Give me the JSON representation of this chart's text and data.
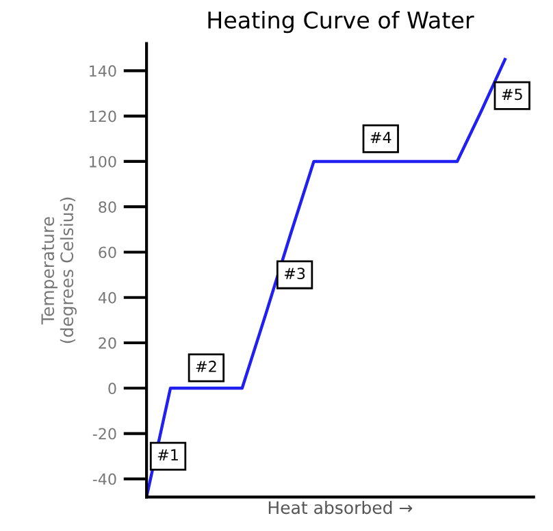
{
  "chart_data": {
    "type": "line",
    "title": "Heating Curve of Water",
    "xlabel": "Heat absorbed →",
    "ylabel": "Temperature\n(degrees Celsius)",
    "categories": [
      null,
      null,
      null,
      null,
      null,
      null,
      null,
      null,
      null,
      null,
      null,
      null,
      null,
      null,
      null,
      null
    ],
    "series": [
      {
        "color": "#2020f0",
        "values": [
          -48,
          0,
          0,
          0,
          0,
          33,
          67,
          100,
          100,
          100,
          100,
          100,
          100,
          100,
          122,
          145
        ]
      }
    ],
    "ylim": [
      -48,
      152
    ],
    "yticks": [
      -40,
      -20,
      0,
      20,
      40,
      60,
      80,
      100,
      120,
      140
    ],
    "tick_labels": "y",
    "grid": false,
    "legend": false,
    "marker": "none",
    "line_style": "solid",
    "annotations": [
      "#1",
      "#2",
      "#3",
      "#4",
      "#5"
    ]
  }
}
